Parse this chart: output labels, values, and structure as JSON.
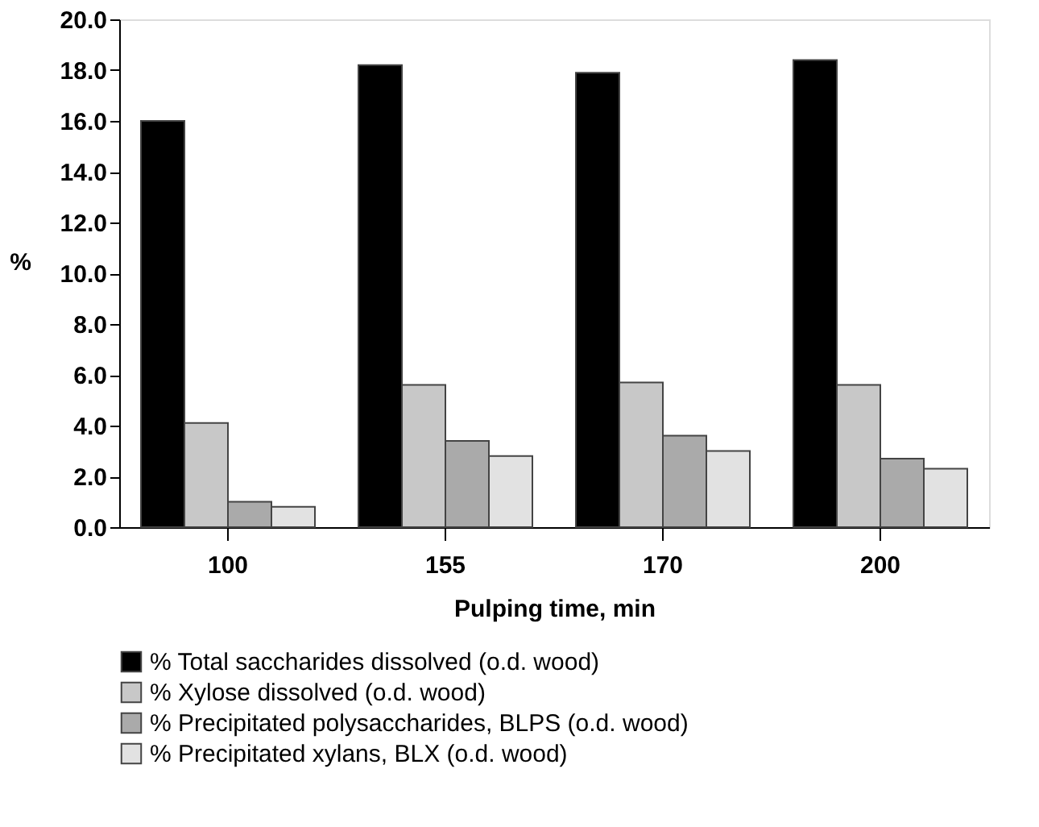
{
  "chart_data": {
    "type": "bar",
    "xlabel": "Pulping time, min",
    "ylabel": "%",
    "categories": [
      "100",
      "155",
      "170",
      "200"
    ],
    "series": [
      {
        "name": "% Total saccharides dissolved (o.d. wood)",
        "color": "#000000",
        "values": [
          16.0,
          18.2,
          17.9,
          18.4
        ]
      },
      {
        "name": "% Xylose dissolved (o.d. wood)",
        "color": "#c8c8c8",
        "values": [
          4.1,
          5.6,
          5.7,
          5.6
        ]
      },
      {
        "name": "% Precipitated polysaccharides, BLPS (o.d. wood)",
        "color": "#aaaaaa",
        "values": [
          1.0,
          3.4,
          3.6,
          2.7
        ]
      },
      {
        "name": "% Precipitated xylans, BLX (o.d. wood)",
        "color": "#e2e2e2",
        "values": [
          0.8,
          2.8,
          3.0,
          2.3
        ]
      }
    ],
    "ylim": [
      0,
      20
    ],
    "yticks": [
      {
        "value": 0,
        "label": "0.0"
      },
      {
        "value": 2,
        "label": "2.0"
      },
      {
        "value": 4,
        "label": "4.0"
      },
      {
        "value": 6,
        "label": "6.0"
      },
      {
        "value": 8,
        "label": "8.0"
      },
      {
        "value": 10,
        "label": "10.0"
      },
      {
        "value": 12,
        "label": "12.0"
      },
      {
        "value": 14,
        "label": "14.0"
      },
      {
        "value": 16,
        "label": "16.0"
      },
      {
        "value": 18,
        "label": "18.0"
      },
      {
        "value": 20,
        "label": "20.0"
      }
    ],
    "grid": false,
    "legend": "bottom"
  }
}
